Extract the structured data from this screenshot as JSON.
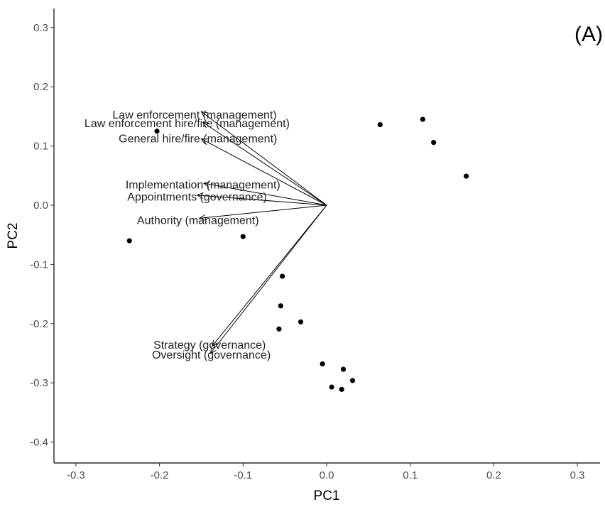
{
  "chart_data": {
    "type": "scatter",
    "panel_label": "(A)",
    "xlabel": "PC1",
    "ylabel": "PC2",
    "xlim": [
      -0.33,
      0.33
    ],
    "ylim": [
      -0.435,
      0.335
    ],
    "x_ticks": [
      -0.3,
      -0.2,
      -0.1,
      0.0,
      0.1,
      0.2,
      0.3
    ],
    "x_tick_labels": [
      "-0.3",
      "-0.2",
      "-0.1",
      "0.0",
      "0.1",
      "0.2",
      "0.3"
    ],
    "y_ticks": [
      0.3,
      0.2,
      0.1,
      0.0,
      -0.1,
      -0.2,
      -0.3,
      -0.4
    ],
    "y_tick_labels": [
      "0.3",
      "0.2",
      "0.1",
      "0.0",
      "-0.1",
      "-0.2",
      "-0.3",
      "-0.4"
    ],
    "grid": false,
    "points": [
      {
        "x": -0.203,
        "y": 0.125
      },
      {
        "x": -0.236,
        "y": -0.06
      },
      {
        "x": -0.1,
        "y": -0.053
      },
      {
        "x": -0.053,
        "y": -0.12
      },
      {
        "x": -0.055,
        "y": -0.17
      },
      {
        "x": -0.057,
        "y": -0.209
      },
      {
        "x": -0.031,
        "y": -0.197
      },
      {
        "x": -0.005,
        "y": -0.268
      },
      {
        "x": 0.02,
        "y": -0.277
      },
      {
        "x": 0.031,
        "y": -0.296
      },
      {
        "x": 0.006,
        "y": -0.307
      },
      {
        "x": 0.018,
        "y": -0.311
      },
      {
        "x": 0.064,
        "y": 0.136
      },
      {
        "x": 0.115,
        "y": 0.145
      },
      {
        "x": 0.128,
        "y": 0.106
      },
      {
        "x": 0.167,
        "y": 0.049
      }
    ],
    "loadings": [
      {
        "label": "Law enforcement (management)",
        "x": -0.15,
        "y": 0.158,
        "lx": -0.158,
        "ly": 0.152
      },
      {
        "label": "Law enforcement hire/fire (management)",
        "x": -0.148,
        "y": 0.14,
        "lx": -0.167,
        "ly": 0.138
      },
      {
        "label": "General hire/fire (management)",
        "x": -0.15,
        "y": 0.112,
        "lx": -0.154,
        "ly": 0.112
      },
      {
        "label": "Implementation (management)",
        "x": -0.147,
        "y": 0.037,
        "lx": -0.148,
        "ly": 0.034
      },
      {
        "label": "Appointments (governance)",
        "x": -0.155,
        "y": 0.017,
        "lx": -0.155,
        "ly": 0.014
      },
      {
        "label": "Authority (management)",
        "x": -0.152,
        "y": -0.022,
        "lx": -0.154,
        "ly": -0.026
      },
      {
        "label": "Strategy (governance)",
        "x": -0.137,
        "y": -0.238,
        "lx": -0.14,
        "ly": -0.236
      },
      {
        "label": "Oversight (governance)",
        "x": -0.139,
        "y": -0.25,
        "lx": -0.138,
        "ly": -0.253
      }
    ]
  }
}
